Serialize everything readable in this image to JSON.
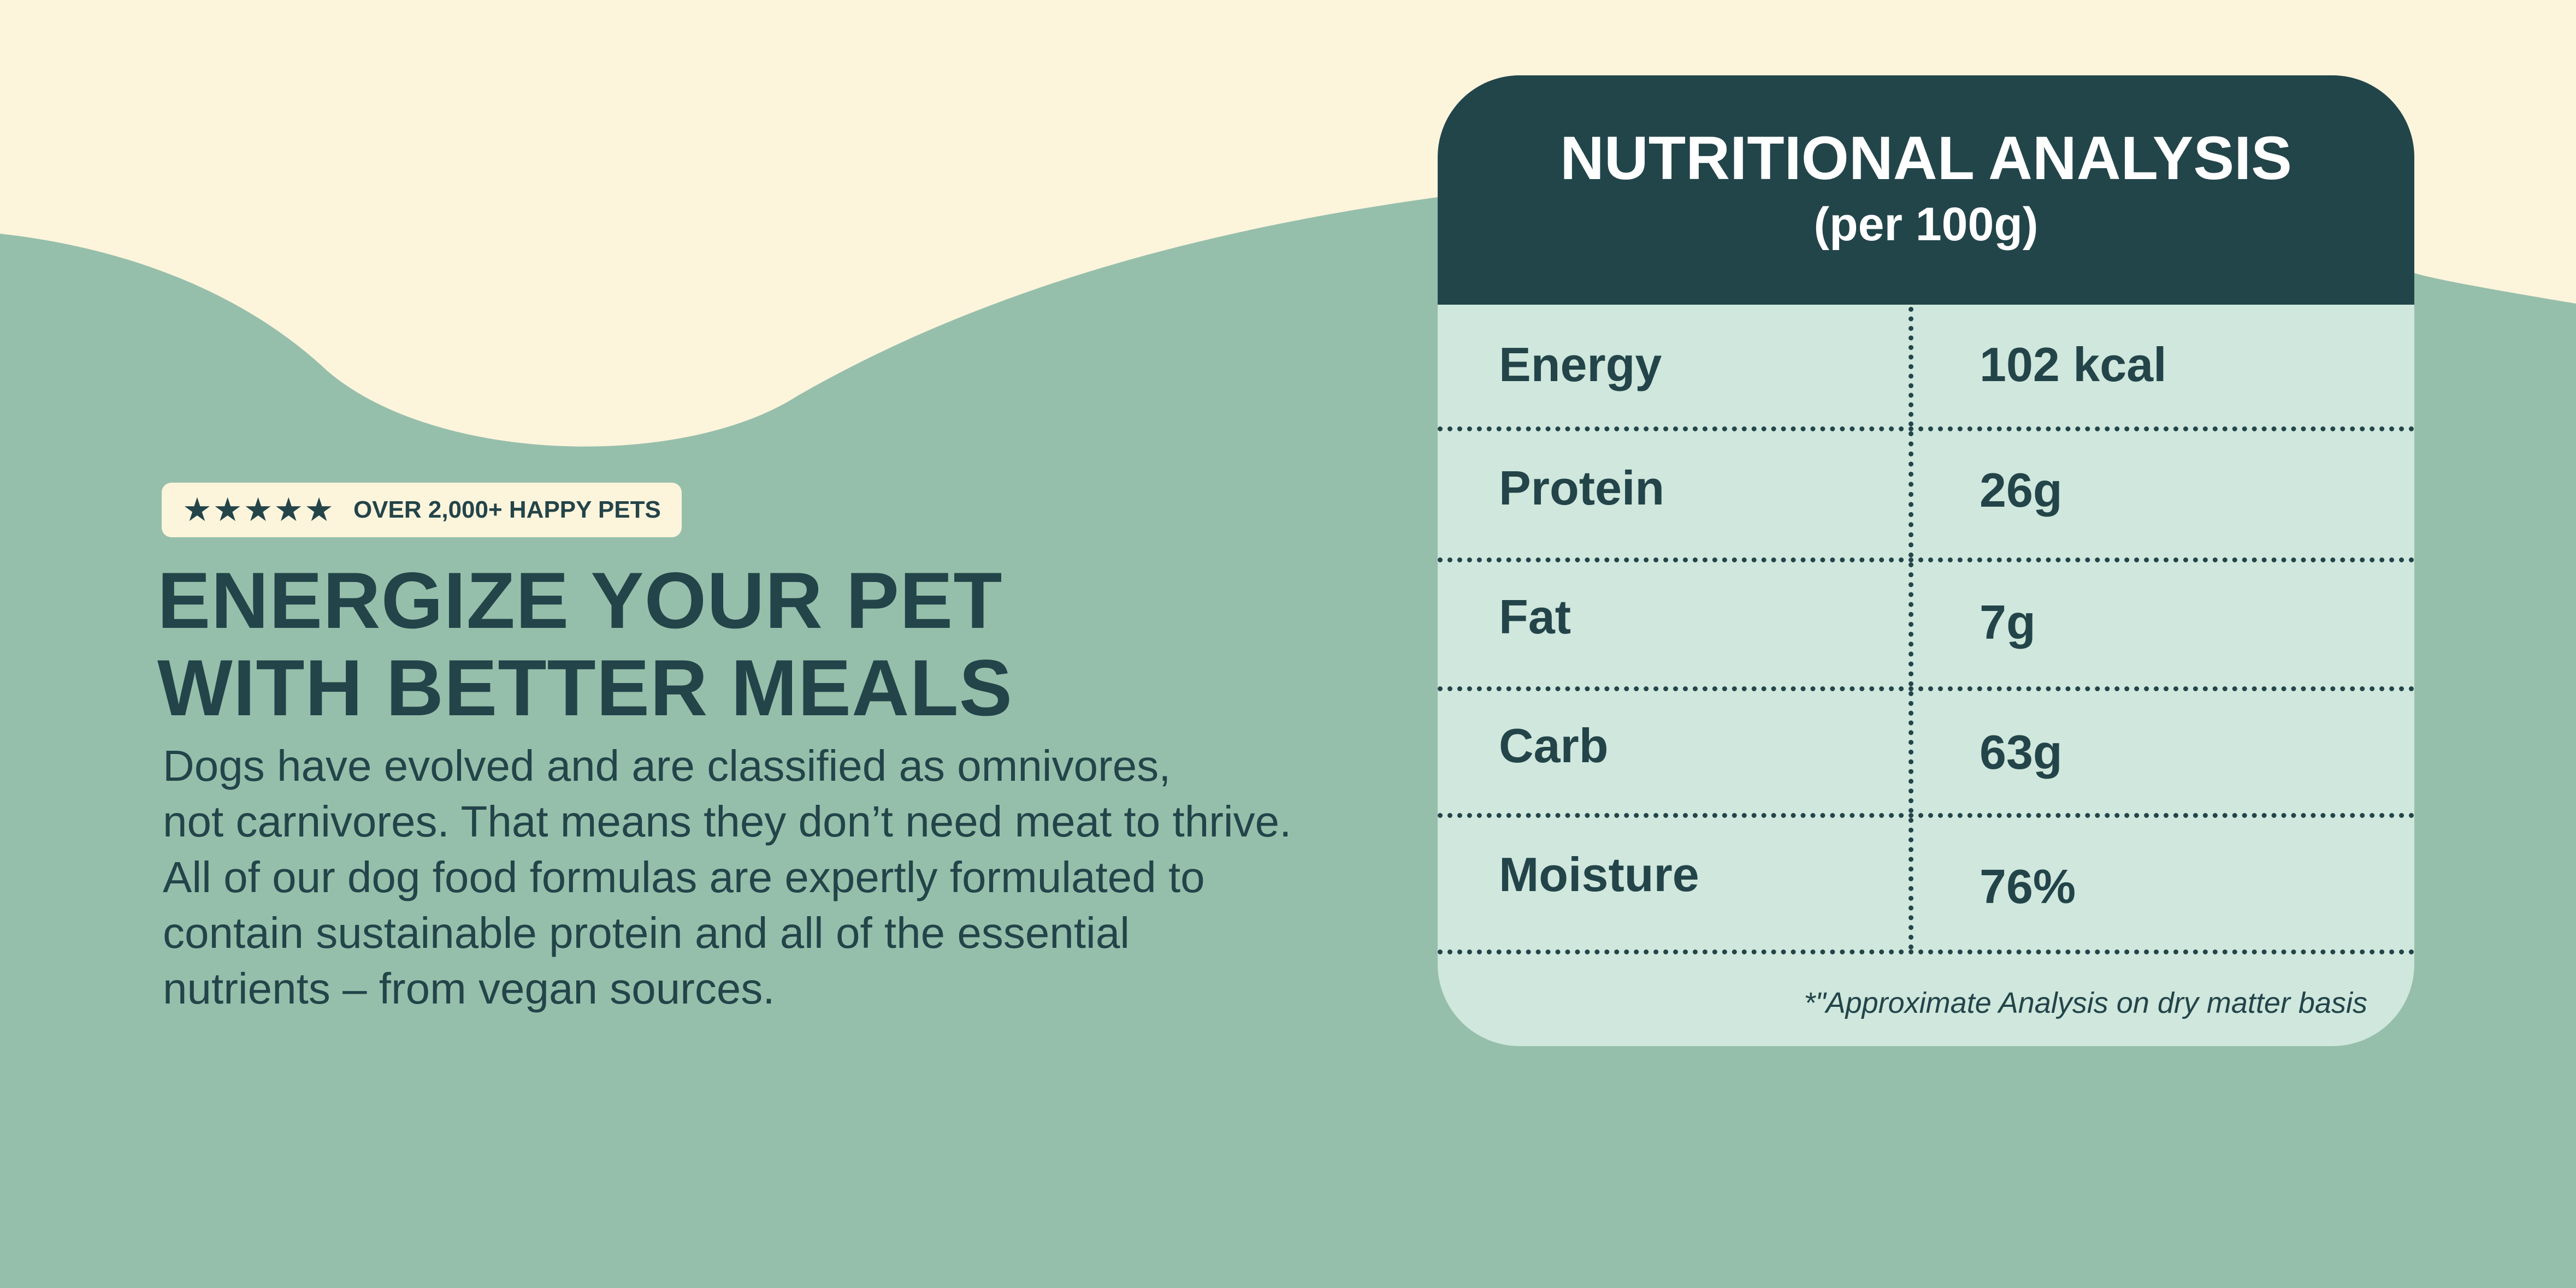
{
  "rating": {
    "stars": "★★★★★",
    "text": "OVER 2,000+ HAPPY PETS"
  },
  "headline": {
    "line1": "ENERGIZE YOUR PET",
    "line2": "WITH BETTER MEALS"
  },
  "description": {
    "line1": "Dogs have evolved and are classified as omnivores,",
    "line2": "not carnivores. That means they don’t need meat to thrive.",
    "line3": "All of our dog food formulas are expertly formulated to",
    "line4": "contain sustainable protein and all of the essential",
    "line5": "nutrients – from vegan sources."
  },
  "nutrition": {
    "title": "NUTRITIONAL ANALYSIS",
    "subtitle": "(per 100g)",
    "rows": [
      {
        "name": "Energy",
        "value": "102 kcal"
      },
      {
        "name": "Protein",
        "value": "26g"
      },
      {
        "name": "Fat",
        "value": "7g"
      },
      {
        "name": "Carb",
        "value": "63g"
      },
      {
        "name": "Moisture",
        "value": "76%"
      }
    ],
    "footnote": "*\"Approximate Analysis on dry matter basis"
  },
  "colors": {
    "background_green": "#96bfab",
    "cream": "#fdf4dc",
    "dark_teal": "#22454a",
    "card_light": "#cfe7dc"
  }
}
